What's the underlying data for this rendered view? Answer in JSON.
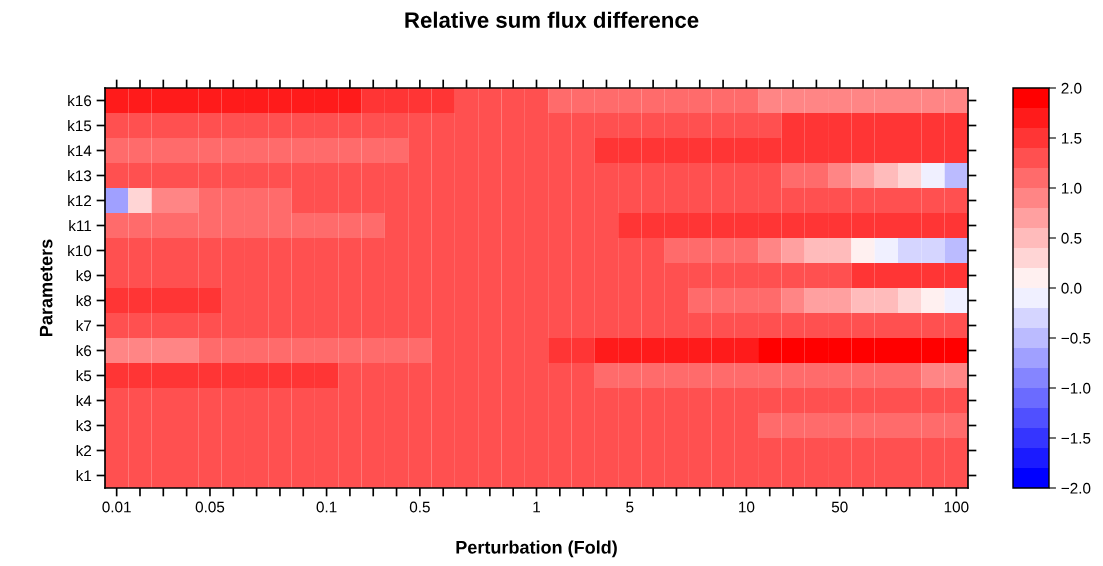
{
  "chart_data": {
    "type": "heatmap",
    "title": "Relative sum flux difference",
    "xlabel": "Perturbation (Fold)",
    "ylabel": "Parameters",
    "categories": [
      "0.01",
      null,
      null,
      null,
      "0.05",
      null,
      null,
      null,
      null,
      "0.1",
      null,
      null,
      null,
      "0.5",
      null,
      null,
      null,
      null,
      "1",
      null,
      null,
      null,
      "5",
      null,
      null,
      null,
      null,
      "10",
      null,
      null,
      null,
      "50",
      null,
      null,
      null,
      null,
      "100"
    ],
    "y_categories": [
      "k16",
      "k15",
      "k14",
      "k13",
      "k12",
      "k11",
      "k10",
      "k9",
      "k8",
      "k7",
      "k6",
      "k5",
      "k4",
      "k3",
      "k2",
      "k1"
    ],
    "cells": [
      [
        1.7,
        1.7,
        1.7,
        1.7,
        1.7,
        1.7,
        1.7,
        1.7,
        1.7,
        1.7,
        1.7,
        1.5,
        1.5,
        1.5,
        1.5,
        1.3,
        1.3,
        1.3,
        1.3,
        1.1,
        1.1,
        1.1,
        1.1,
        1.1,
        1.1,
        1.1,
        1.1,
        1.1,
        0.9,
        0.9,
        0.9,
        0.9,
        0.9,
        0.9,
        0.9,
        0.9,
        0.9
      ],
      [
        1.3,
        1.3,
        1.3,
        1.3,
        1.3,
        1.3,
        1.3,
        1.3,
        1.3,
        1.3,
        1.3,
        1.3,
        1.3,
        1.3,
        1.3,
        1.3,
        1.3,
        1.3,
        1.3,
        1.3,
        1.3,
        1.3,
        1.3,
        1.3,
        1.3,
        1.3,
        1.3,
        1.3,
        1.3,
        1.5,
        1.5,
        1.5,
        1.5,
        1.5,
        1.5,
        1.5,
        1.5
      ],
      [
        1.1,
        1.1,
        1.1,
        1.1,
        1.1,
        1.1,
        1.1,
        1.1,
        1.1,
        1.1,
        1.1,
        1.1,
        1.1,
        1.3,
        1.3,
        1.3,
        1.3,
        1.3,
        1.3,
        1.3,
        1.3,
        1.5,
        1.5,
        1.5,
        1.5,
        1.5,
        1.5,
        1.5,
        1.5,
        1.5,
        1.5,
        1.5,
        1.5,
        1.5,
        1.5,
        1.5,
        1.5
      ],
      [
        1.3,
        1.3,
        1.3,
        1.3,
        1.3,
        1.3,
        1.3,
        1.3,
        1.3,
        1.3,
        1.3,
        1.3,
        1.3,
        1.3,
        1.3,
        1.3,
        1.3,
        1.3,
        1.3,
        1.3,
        1.3,
        1.3,
        1.3,
        1.3,
        1.3,
        1.3,
        1.3,
        1.3,
        1.3,
        1.1,
        1.1,
        0.9,
        0.7,
        0.5,
        0.3,
        -0.1,
        -0.5
      ],
      [
        -0.7,
        0.3,
        0.9,
        0.9,
        1.1,
        1.1,
        1.1,
        1.1,
        1.3,
        1.3,
        1.3,
        1.3,
        1.3,
        1.3,
        1.3,
        1.3,
        1.3,
        1.3,
        1.3,
        1.3,
        1.3,
        1.3,
        1.3,
        1.3,
        1.3,
        1.3,
        1.3,
        1.3,
        1.3,
        1.3,
        1.3,
        1.3,
        1.3,
        1.3,
        1.3,
        1.3,
        1.3
      ],
      [
        1.1,
        1.1,
        1.1,
        1.1,
        1.1,
        1.1,
        1.1,
        1.1,
        1.1,
        1.1,
        1.1,
        1.1,
        1.3,
        1.3,
        1.3,
        1.3,
        1.3,
        1.3,
        1.3,
        1.3,
        1.3,
        1.3,
        1.5,
        1.5,
        1.5,
        1.5,
        1.5,
        1.5,
        1.5,
        1.5,
        1.5,
        1.5,
        1.5,
        1.5,
        1.5,
        1.5,
        1.5
      ],
      [
        1.3,
        1.3,
        1.3,
        1.3,
        1.3,
        1.3,
        1.3,
        1.3,
        1.3,
        1.3,
        1.3,
        1.3,
        1.3,
        1.3,
        1.3,
        1.3,
        1.3,
        1.3,
        1.3,
        1.3,
        1.3,
        1.3,
        1.3,
        1.3,
        1.1,
        1.1,
        1.1,
        1.1,
        0.9,
        0.7,
        0.5,
        0.5,
        0.1,
        -0.1,
        -0.3,
        -0.3,
        -0.5
      ],
      [
        1.3,
        1.3,
        1.3,
        1.3,
        1.3,
        1.3,
        1.3,
        1.3,
        1.3,
        1.3,
        1.3,
        1.3,
        1.3,
        1.3,
        1.3,
        1.3,
        1.3,
        1.3,
        1.3,
        1.3,
        1.3,
        1.3,
        1.3,
        1.3,
        1.3,
        1.3,
        1.3,
        1.3,
        1.3,
        1.3,
        1.3,
        1.3,
        1.5,
        1.5,
        1.5,
        1.5,
        1.5
      ],
      [
        1.5,
        1.5,
        1.5,
        1.5,
        1.5,
        1.3,
        1.3,
        1.3,
        1.3,
        1.3,
        1.3,
        1.3,
        1.3,
        1.3,
        1.3,
        1.3,
        1.3,
        1.3,
        1.3,
        1.3,
        1.3,
        1.3,
        1.3,
        1.3,
        1.3,
        1.1,
        1.1,
        1.1,
        1.1,
        0.9,
        0.7,
        0.7,
        0.5,
        0.5,
        0.3,
        0.1,
        -0.1
      ],
      [
        1.3,
        1.3,
        1.3,
        1.3,
        1.3,
        1.3,
        1.3,
        1.3,
        1.3,
        1.3,
        1.3,
        1.3,
        1.3,
        1.3,
        1.3,
        1.3,
        1.3,
        1.3,
        1.3,
        1.3,
        1.3,
        1.3,
        1.3,
        1.3,
        1.3,
        1.3,
        1.3,
        1.3,
        1.3,
        1.3,
        1.3,
        1.3,
        1.3,
        1.3,
        1.3,
        1.3,
        1.3
      ],
      [
        0.9,
        0.9,
        0.9,
        0.9,
        1.1,
        1.1,
        1.1,
        1.1,
        1.1,
        1.1,
        1.1,
        1.1,
        1.1,
        1.1,
        1.3,
        1.3,
        1.3,
        1.3,
        1.3,
        1.5,
        1.5,
        1.7,
        1.7,
        1.7,
        1.7,
        1.7,
        1.7,
        1.7,
        1.9,
        1.9,
        1.9,
        1.9,
        1.9,
        1.9,
        1.9,
        1.9,
        1.9
      ],
      [
        1.5,
        1.5,
        1.5,
        1.5,
        1.5,
        1.5,
        1.5,
        1.5,
        1.5,
        1.5,
        1.3,
        1.3,
        1.3,
        1.3,
        1.3,
        1.3,
        1.3,
        1.3,
        1.3,
        1.3,
        1.3,
        1.1,
        1.1,
        1.1,
        1.1,
        1.1,
        1.1,
        1.1,
        1.1,
        1.1,
        1.1,
        1.1,
        1.1,
        1.1,
        1.1,
        0.9,
        0.9
      ],
      [
        1.3,
        1.3,
        1.3,
        1.3,
        1.3,
        1.3,
        1.3,
        1.3,
        1.3,
        1.3,
        1.3,
        1.3,
        1.3,
        1.3,
        1.3,
        1.3,
        1.3,
        1.3,
        1.3,
        1.3,
        1.3,
        1.3,
        1.3,
        1.3,
        1.3,
        1.3,
        1.3,
        1.3,
        1.3,
        1.3,
        1.3,
        1.3,
        1.3,
        1.3,
        1.3,
        1.3,
        1.3
      ],
      [
        1.3,
        1.3,
        1.3,
        1.3,
        1.3,
        1.3,
        1.3,
        1.3,
        1.3,
        1.3,
        1.3,
        1.3,
        1.3,
        1.3,
        1.3,
        1.3,
        1.3,
        1.3,
        1.3,
        1.3,
        1.3,
        1.3,
        1.3,
        1.3,
        1.3,
        1.3,
        1.3,
        1.3,
        1.1,
        1.1,
        1.1,
        1.1,
        1.1,
        1.1,
        1.1,
        1.1,
        1.1
      ],
      [
        1.3,
        1.3,
        1.3,
        1.3,
        1.3,
        1.3,
        1.3,
        1.3,
        1.3,
        1.3,
        1.3,
        1.3,
        1.3,
        1.3,
        1.3,
        1.3,
        1.3,
        1.3,
        1.3,
        1.3,
        1.3,
        1.3,
        1.3,
        1.3,
        1.3,
        1.3,
        1.3,
        1.3,
        1.3,
        1.3,
        1.3,
        1.3,
        1.3,
        1.3,
        1.3,
        1.3,
        1.3
      ],
      [
        1.3,
        1.3,
        1.3,
        1.3,
        1.3,
        1.3,
        1.3,
        1.3,
        1.3,
        1.3,
        1.3,
        1.3,
        1.3,
        1.3,
        1.3,
        1.3,
        1.3,
        1.3,
        1.3,
        1.3,
        1.3,
        1.3,
        1.3,
        1.3,
        1.3,
        1.3,
        1.3,
        1.3,
        1.3,
        1.3,
        1.3,
        1.3,
        1.3,
        1.3,
        1.3,
        1.3,
        1.3
      ]
    ],
    "clim": [
      -2.0,
      2.0
    ],
    "cticks": [
      {
        "value": -2.0,
        "label": "−2.0"
      },
      {
        "value": -1.5,
        "label": "−1.5"
      },
      {
        "value": -1.0,
        "label": "−1.0"
      },
      {
        "value": -0.5,
        "label": "−0.5"
      },
      {
        "value": 0.0,
        "label": "0.0"
      },
      {
        "value": 0.5,
        "label": "0.5"
      },
      {
        "value": 1.0,
        "label": "1.0"
      },
      {
        "value": 1.5,
        "label": "1.5"
      },
      {
        "value": 2.0,
        "label": "2.0"
      }
    ]
  }
}
